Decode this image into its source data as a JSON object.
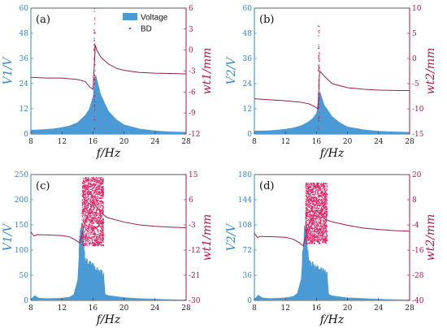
{
  "colors": {
    "left_axis": "#2e86c9",
    "right_axis": "#b0164f",
    "voltage_fill": "#4a9ad6",
    "bd_line": "#9b1c48",
    "bd_scatter": "#e02060"
  },
  "legend": {
    "voltage": "Voltage",
    "bd": "BD"
  },
  "chart_data": [
    {
      "type": "area",
      "panel_label": "(a)",
      "xlabel": "f/Hz",
      "ylabel": "V1/V",
      "y2label": "wt1/mm",
      "xlim": [
        8,
        28
      ],
      "ylim": [
        0,
        60
      ],
      "y2lim": [
        -12,
        6
      ],
      "xticks": [
        "8",
        "12",
        "16",
        "20",
        "24",
        "28"
      ],
      "yticks": [
        "0",
        "12",
        "24",
        "36",
        "48",
        "60"
      ],
      "y2ticks": [
        "-12",
        "-9",
        "-6",
        "-3",
        "0",
        "3",
        "6"
      ],
      "legend_position": "top-right",
      "series": [
        {
          "name": "Voltage",
          "axis": "left",
          "x": [
            8,
            9,
            10,
            11,
            12,
            13,
            14,
            15,
            15.5,
            16,
            16.2,
            16.4,
            16.6,
            17,
            18,
            19,
            20,
            22,
            24,
            26,
            28
          ],
          "values": [
            2,
            2.1,
            2.3,
            2.6,
            3.2,
            4,
            5.5,
            9,
            12,
            18,
            27,
            28,
            25,
            19,
            11,
            7,
            4.5,
            2.5,
            1.6,
            1.1,
            0.9
          ]
        },
        {
          "name": "BD",
          "axis": "right",
          "x": [
            8,
            10,
            12,
            14,
            15,
            15.6,
            16,
            16.3,
            16.5,
            17,
            18,
            19,
            20,
            22,
            24,
            26,
            28
          ],
          "values": [
            -3.9,
            -4.0,
            -4.0,
            -4.2,
            -4.5,
            -5.3,
            -5.6,
            0.7,
            0.0,
            -1.0,
            -2.0,
            -2.6,
            -2.9,
            -3.2,
            -3.3,
            -3.35,
            -3.4
          ]
        },
        {
          "name": "BD-scatter",
          "axis": "right",
          "x": 16.2,
          "range": [
            -11.5,
            6
          ]
        }
      ]
    },
    {
      "type": "area",
      "panel_label": "(b)",
      "xlabel": "f/Hz",
      "ylabel": "V2/V",
      "y2label": "wt2/mm",
      "xlim": [
        8,
        28
      ],
      "ylim": [
        0,
        60
      ],
      "y2lim": [
        -15,
        10
      ],
      "xticks": [
        "8",
        "12",
        "16",
        "20",
        "24",
        "28"
      ],
      "yticks": [
        "0",
        "12",
        "24",
        "36",
        "48",
        "60"
      ],
      "y2ticks": [
        "-15",
        "-10",
        "-5",
        "0",
        "5",
        "10"
      ],
      "series": [
        {
          "name": "Voltage",
          "axis": "left",
          "x": [
            8,
            9,
            10,
            11,
            12,
            13,
            14,
            15,
            15.5,
            16,
            16.3,
            16.5,
            17,
            18,
            19,
            20,
            22,
            24,
            26,
            28
          ],
          "values": [
            1.5,
            1.6,
            1.7,
            2,
            2.4,
            3,
            4,
            6,
            7.5,
            10,
            19,
            20,
            14,
            8.5,
            5.5,
            3.5,
            2.2,
            1.4,
            1.1,
            0.9
          ]
        },
        {
          "name": "BD",
          "axis": "right",
          "x": [
            8,
            10,
            12,
            14,
            15,
            15.8,
            16.2,
            16.4,
            17,
            18,
            20,
            22,
            24,
            26,
            28
          ],
          "values": [
            -8.0,
            -8.2,
            -8.4,
            -8.7,
            -9.0,
            -9.6,
            -10.0,
            -2.5,
            -3.5,
            -5.0,
            -5.8,
            -6.1,
            -6.3,
            -6.35,
            -6.4
          ]
        },
        {
          "name": "BD-scatter",
          "axis": "right",
          "x": 16.3,
          "range": [
            -14.5,
            7
          ]
        }
      ]
    },
    {
      "type": "area",
      "panel_label": "(c)",
      "xlabel": "f/Hz",
      "ylabel": "V1/V",
      "y2label": "wt1/mm",
      "xlim": [
        8,
        28
      ],
      "ylim": [
        0,
        250
      ],
      "y2lim": [
        -30,
        15
      ],
      "xticks": [
        "8",
        "12",
        "16",
        "20",
        "24",
        "28"
      ],
      "yticks": [
        "0",
        "50",
        "100",
        "150",
        "200",
        "250"
      ],
      "y2ticks": [
        "-30",
        "-21",
        "-12",
        "-3",
        "6",
        "15"
      ],
      "series": [
        {
          "name": "Voltage",
          "axis": "left",
          "x": [
            8,
            8.5,
            9,
            10,
            11,
            12,
            13,
            13.5,
            14,
            14.3,
            14.6,
            15,
            16,
            17,
            17.4,
            17.6,
            18,
            19,
            20,
            22,
            24,
            26,
            28
          ],
          "values": [
            3,
            10,
            5,
            4,
            4.5,
            5,
            7,
            12,
            40,
            120,
            150,
            75,
            65,
            55,
            50,
            12,
            10,
            8,
            6,
            4,
            3,
            2,
            1.5
          ]
        },
        {
          "name": "BD",
          "axis": "right",
          "x": [
            8,
            8.4,
            8.8,
            10,
            12,
            13,
            13.8,
            14.3,
            15,
            16,
            17,
            17.6,
            18,
            20,
            22,
            24,
            26,
            28
          ],
          "values": [
            -5.5,
            -7,
            -6.5,
            -6.6,
            -6.8,
            -7.3,
            -8.5,
            -9.5,
            -2,
            5,
            1.5,
            0.0,
            -0.5,
            -2.0,
            -3.0,
            -3.5,
            -3.8,
            -4.0
          ]
        },
        {
          "name": "BD-scatter",
          "axis": "right",
          "xrange": [
            14.6,
            17.4
          ],
          "range": [
            -10.5,
            14
          ]
        }
      ]
    },
    {
      "type": "area",
      "panel_label": "(d)",
      "xlabel": "f/Hz",
      "ylabel": "V2/V",
      "y2label": "wt2/mm",
      "xlim": [
        8,
        28
      ],
      "ylim": [
        0,
        180
      ],
      "y2lim": [
        -40,
        20
      ],
      "xticks": [
        "8",
        "12",
        "16",
        "20",
        "24",
        "28"
      ],
      "yticks": [
        "0",
        "36",
        "72",
        "108",
        "144",
        "180"
      ],
      "y2ticks": [
        "-40",
        "-28",
        "-16",
        "-4",
        "8",
        "20"
      ],
      "series": [
        {
          "name": "Voltage",
          "axis": "left",
          "x": [
            8,
            8.5,
            9,
            10,
            11,
            12,
            13,
            13.5,
            14,
            14.3,
            14.6,
            15,
            16,
            17,
            17.4,
            17.6,
            18,
            19,
            20,
            22,
            24,
            26,
            28
          ],
          "values": [
            2,
            8,
            4,
            3,
            3.5,
            4,
            6,
            10,
            30,
            80,
            110,
            52,
            45,
            40,
            36,
            9,
            7,
            5.5,
            4,
            3,
            2,
            1.5,
            1
          ]
        },
        {
          "name": "BD",
          "axis": "right",
          "x": [
            8,
            8.4,
            8.8,
            10,
            12,
            13,
            13.8,
            14.3,
            15,
            16,
            17,
            17.6,
            18,
            20,
            22,
            24,
            26,
            28
          ],
          "values": [
            -8,
            -10,
            -9.5,
            -9.6,
            -9.9,
            -10.8,
            -12.5,
            -14,
            -4,
            3,
            -1,
            -2,
            -2.5,
            -4.2,
            -5.5,
            -6.2,
            -6.7,
            -7.0
          ]
        },
        {
          "name": "BD-scatter",
          "axis": "right",
          "xrange": [
            14.6,
            17.4
          ],
          "range": [
            -13,
            16
          ]
        }
      ]
    }
  ]
}
